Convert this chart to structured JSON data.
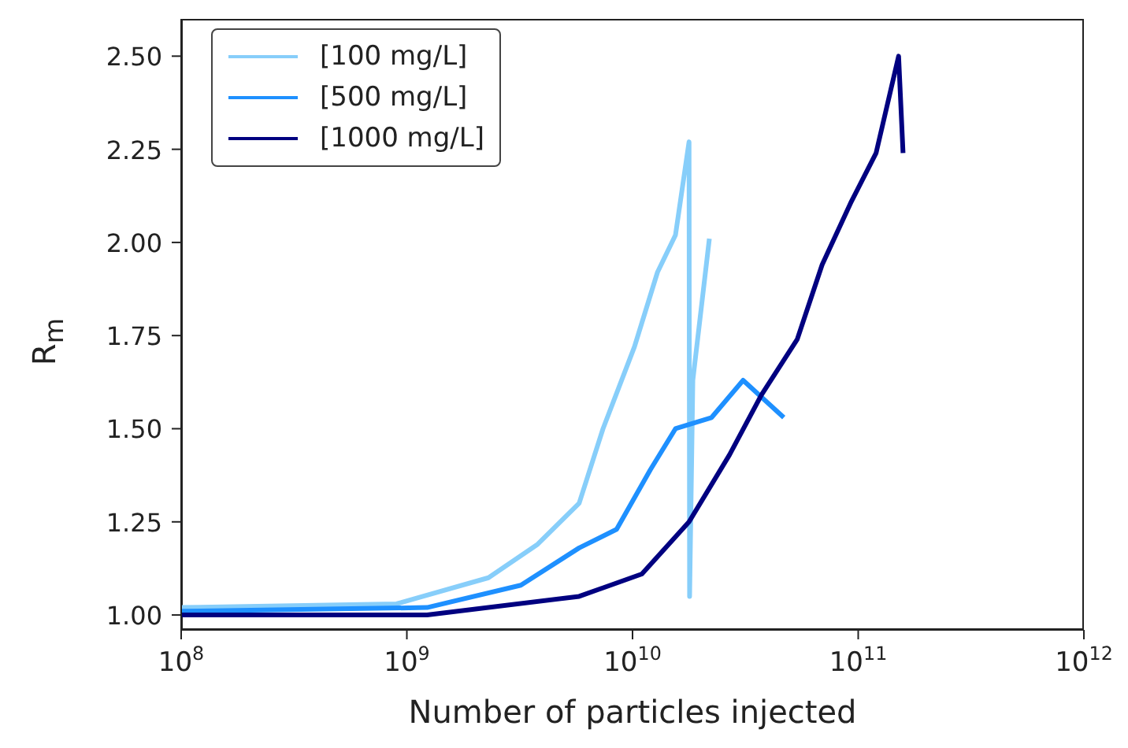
{
  "chart_data": {
    "type": "line",
    "xlabel": "Number of particles injected",
    "ylabel": "R$_{m}$",
    "log": "x",
    "xlim": [
      100000000,
      1000000000000
    ],
    "xticks": [
      {
        "value": 100000000,
        "label": "10$^{8}$"
      },
      {
        "value": 1000000000,
        "label": "10$^{9}$"
      },
      {
        "value": 10000000000,
        "label": "10$^{10}$"
      },
      {
        "value": 100000000000,
        "label": "10$^{11}$"
      },
      {
        "value": 1000000000000,
        "label": "10$^{12}$"
      }
    ],
    "ylim": [
      0.96,
      2.6
    ],
    "yticks": [
      {
        "value": 1,
        "label": "1.00"
      },
      {
        "value": 1.25,
        "label": "1.25"
      },
      {
        "value": 1.5,
        "label": "1.50"
      },
      {
        "value": 1.75,
        "label": "1.75"
      },
      {
        "value": 2,
        "label": "2.00"
      },
      {
        "value": 2.25,
        "label": "2.25"
      },
      {
        "value": 2.5,
        "label": "2.50"
      }
    ],
    "legend": "top left",
    "grid": false,
    "series": [
      {
        "name": "[100 mg/L]",
        "color": "#87cefa",
        "x": [
          100000000,
          900000000,
          2300000000,
          3800000000,
          5800000000,
          7400000000,
          10200000000,
          12900000000,
          15500000000,
          17800000000,
          17900000000,
          18500000000,
          21900000000
        ],
        "values": [
          1.02,
          1.03,
          1.1,
          1.19,
          1.3,
          1.5,
          1.72,
          1.92,
          2.02,
          2.27,
          1.05,
          1.63,
          2.01
        ]
      },
      {
        "name": "[500 mg/L]",
        "color": "#1e90ff",
        "x": [
          100000000,
          1230000000,
          3200000000,
          5800000000,
          8500000000,
          12000000000,
          15500000000,
          22400000000,
          30900000000,
          46800000000
        ],
        "values": [
          1.01,
          1.02,
          1.08,
          1.18,
          1.23,
          1.39,
          1.5,
          1.53,
          1.63,
          1.53
        ]
      },
      {
        "name": "[1000 mg/L]",
        "color": "#000080",
        "x": [
          100000000,
          1230000000,
          5800000000,
          11000000000,
          17800000000,
          26900000000,
          37200000000,
          53700000000,
          69200000000,
          93300000000,
          120000000000,
          151000000000,
          158000000000
        ],
        "values": [
          1.0,
          1.0,
          1.05,
          1.11,
          1.25,
          1.43,
          1.59,
          1.74,
          1.94,
          2.11,
          2.24,
          2.5,
          2.24
        ]
      }
    ]
  }
}
